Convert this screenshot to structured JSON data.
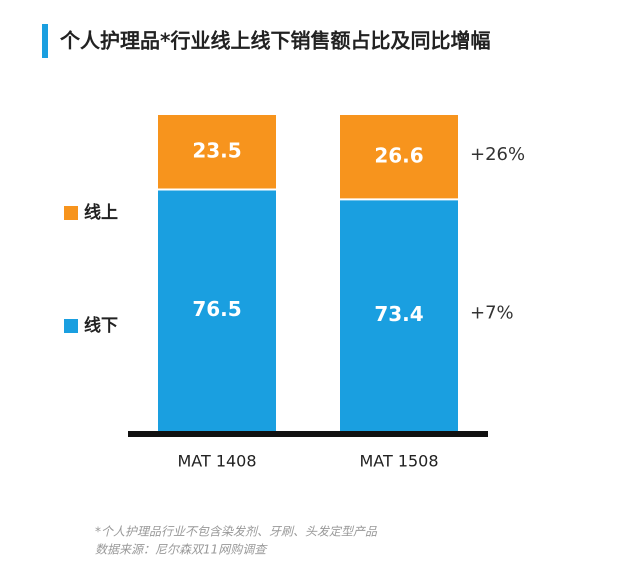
{
  "chart_data": {
    "type": "stacked_bar",
    "title": "个人护理品*行业线上线下销售额占比及同比增幅",
    "categories": [
      "MAT 1408",
      "MAT 1508"
    ],
    "series": [
      {
        "name": "线下",
        "color": "#1a9fe0",
        "values": [
          76.5,
          73.4
        ],
        "growth": "+7%"
      },
      {
        "name": "线上",
        "color": "#f7941d",
        "values": [
          23.5,
          26.6
        ],
        "growth": "+26%"
      }
    ],
    "ylim": [
      0,
      100
    ],
    "footnotes": [
      "*个人护理品行业不包含染发剂、牙刷、头发定型产品",
      "数据来源：尼尔森双11网购调查"
    ]
  }
}
